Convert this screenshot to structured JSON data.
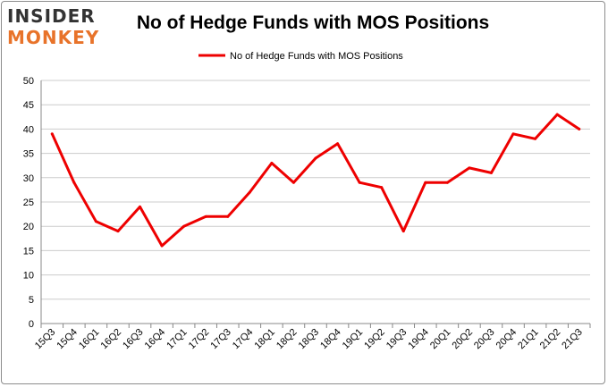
{
  "header": {
    "logo_line1": "INSIDER",
    "logo_line2": "MONKEY",
    "title": "No of Hedge Funds with MOS Positions"
  },
  "colors": {
    "line": "#ee0000",
    "grid": "#cccccc",
    "axis": "#888888",
    "logo_dark": "#333333",
    "logo_accent": "#e8732a"
  },
  "chart_data": {
    "type": "line",
    "title": "No of Hedge Funds with MOS Positions",
    "xlabel": "",
    "ylabel": "",
    "ylim": [
      0,
      50
    ],
    "yticks": [
      0,
      5,
      10,
      15,
      20,
      25,
      30,
      35,
      40,
      45,
      50
    ],
    "grid": true,
    "legend_position": "top",
    "categories": [
      "15Q3",
      "15Q4",
      "16Q1",
      "16Q2",
      "16Q3",
      "16Q4",
      "17Q1",
      "17Q2",
      "17Q3",
      "17Q4",
      "18Q1",
      "18Q2",
      "18Q3",
      "18Q4",
      "19Q1",
      "19Q2",
      "19Q3",
      "19Q4",
      "20Q1",
      "20Q2",
      "20Q3",
      "20Q4",
      "21Q1",
      "21Q2",
      "21Q3"
    ],
    "series": [
      {
        "name": "No of Hedge Funds with MOS Positions",
        "values": [
          39,
          29,
          21,
          19,
          24,
          16,
          20,
          22,
          22,
          27,
          33,
          29,
          34,
          37,
          29,
          28,
          19,
          29,
          29,
          32,
          31,
          39,
          38,
          43,
          40
        ]
      }
    ]
  }
}
